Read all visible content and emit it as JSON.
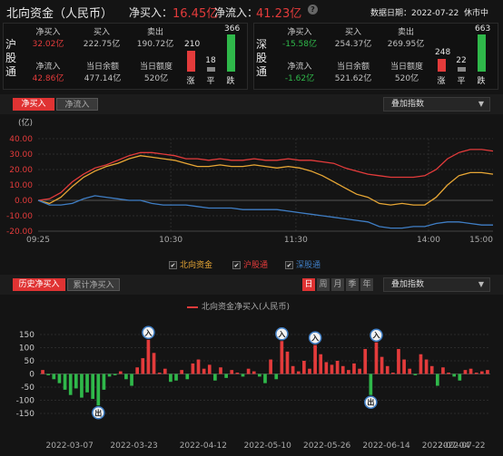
{
  "header": {
    "title": "北向资金（人民币）",
    "net_buy_label": "净买入：",
    "net_buy_value": "16.45亿",
    "net_inflow_label": "净流入：",
    "net_inflow_value": "41.23亿",
    "date_label": "数据日期：2022-07-22",
    "status": "休市中"
  },
  "sh": {
    "name": "沪股通",
    "net_buy_label": "净买入",
    "net_buy_value": "32.02亿",
    "buy_label": "买入",
    "buy_value": "222.75亿",
    "sell_label": "卖出",
    "sell_value": "190.72亿",
    "net_inflow_label": "净流入",
    "net_inflow_value": "42.86亿",
    "balance_label": "当日余额",
    "balance_value": "477.14亿",
    "quota_label": "当日额度",
    "quota_value": "520亿",
    "up_count": "210",
    "flat_count": "18",
    "down_count": "366",
    "up_label": "涨",
    "flat_label": "平",
    "down_label": "跌"
  },
  "sz": {
    "name": "深股通",
    "net_buy_label": "净买入",
    "net_buy_value": "-15.58亿",
    "buy_label": "买入",
    "buy_value": "254.37亿",
    "sell_label": "卖出",
    "sell_value": "269.95亿",
    "net_inflow_label": "净流入",
    "net_inflow_value": "-1.62亿",
    "balance_label": "当日余额",
    "balance_value": "521.62亿",
    "quota_label": "当日额度",
    "quota_value": "520亿",
    "up_count": "248",
    "flat_count": "22",
    "down_count": "663",
    "up_label": "涨",
    "flat_label": "平",
    "down_label": "跌"
  },
  "intraday": {
    "tabs": [
      "净买入",
      "净流入"
    ],
    "overlay_label": "叠加指数",
    "unit": "(亿)",
    "legend": [
      "北向资金",
      "沪股通",
      "深股通"
    ]
  },
  "history": {
    "tabs": [
      "历史净买入",
      "累计净买入"
    ],
    "periods": [
      "日",
      "周",
      "月",
      "季",
      "年"
    ],
    "overlay_label": "叠加指数",
    "legend": "北向资金净买入(人民币)",
    "in_marker": "入",
    "out_marker": "出"
  },
  "colors": {
    "red": "#e33b3b",
    "green": "#2fb84a",
    "orange": "#e8a735",
    "blue_line": "#3f7ec5",
    "bg": "#141414"
  },
  "chart_data": [
    {
      "type": "line",
      "ylabel": "(亿)",
      "ylim": [
        -20,
        40
      ],
      "y_ticks": [
        "40.00",
        "30.00",
        "20.00",
        "10.00",
        "0.00",
        "-10.00",
        "-20.00"
      ],
      "x_ticks": [
        "09:25",
        "10:30",
        "11:30",
        "14:00",
        "15:00"
      ],
      "x": [
        0,
        3,
        6,
        9,
        12,
        15,
        18,
        21,
        24,
        27,
        30,
        33,
        36,
        39,
        42,
        45,
        48,
        51,
        54,
        57,
        60,
        63,
        66,
        69,
        72,
        75,
        78,
        81,
        84,
        87,
        90,
        93,
        96,
        99,
        102,
        105,
        108,
        111,
        114,
        117,
        120
      ],
      "series": [
        {
          "name": "北向资金",
          "color": "#e8a735",
          "values": [
            0,
            -2,
            2,
            9,
            15,
            19,
            22,
            24,
            27,
            29,
            28,
            27,
            26,
            24,
            22,
            22,
            23,
            22,
            22,
            23,
            22,
            21,
            22,
            21,
            19,
            16,
            12,
            8,
            4,
            2,
            -2,
            -3,
            -2,
            -3,
            -3,
            2,
            10,
            16,
            18,
            18,
            17
          ]
        },
        {
          "name": "沪股通",
          "color": "#e33b3b",
          "values": [
            0,
            1,
            5,
            12,
            17,
            21,
            23,
            26,
            29,
            31,
            31,
            30,
            29,
            27,
            27,
            26,
            27,
            26,
            26,
            27,
            26,
            26,
            27,
            26,
            26,
            25,
            24,
            21,
            19,
            17,
            16,
            15,
            15,
            15,
            16,
            20,
            27,
            31,
            33,
            33,
            32
          ]
        },
        {
          "name": "深股通",
          "color": "#3f7ec5",
          "values": [
            0,
            -3,
            -3,
            -2,
            1,
            3,
            2,
            1,
            0,
            0,
            -2,
            -3,
            -3,
            -3,
            -4,
            -5,
            -5,
            -5,
            -6,
            -6,
            -6,
            -6,
            -7,
            -8,
            -9,
            -10,
            -11,
            -12,
            -13,
            -14,
            -17,
            -18,
            -18,
            -17,
            -17,
            -15,
            -14,
            -14,
            -15,
            -16,
            -16
          ]
        }
      ]
    },
    {
      "type": "bar",
      "title": "北向资金净买入(人民币)",
      "ylim": [
        -150,
        150
      ],
      "y_ticks": [
        "150",
        "100",
        "50",
        "0",
        "-50",
        "-100",
        "-150"
      ],
      "x_ticks": [
        "2022-03-07",
        "2022-03-23",
        "2022-04-12",
        "2022-05-10",
        "2022-05-26",
        "2022-06-14",
        "2022-07-04",
        "2022-07-22"
      ],
      "values": [
        15,
        -5,
        -20,
        -35,
        -60,
        -80,
        -55,
        -90,
        -70,
        -95,
        -120,
        -60,
        -10,
        -5,
        10,
        -20,
        -45,
        25,
        60,
        130,
        80,
        5,
        20,
        -30,
        -25,
        15,
        -20,
        40,
        55,
        20,
        35,
        -25,
        25,
        -15,
        15,
        5,
        -10,
        20,
        10,
        -10,
        -35,
        55,
        -20,
        125,
        85,
        30,
        10,
        50,
        20,
        110,
        75,
        45,
        35,
        50,
        30,
        15,
        40,
        20,
        95,
        -80,
        120,
        65,
        30,
        5,
        95,
        55,
        20,
        -5,
        75,
        55,
        30,
        -45,
        25,
        5,
        -10,
        -25,
        15,
        20,
        5,
        10,
        15
      ]
    }
  ]
}
